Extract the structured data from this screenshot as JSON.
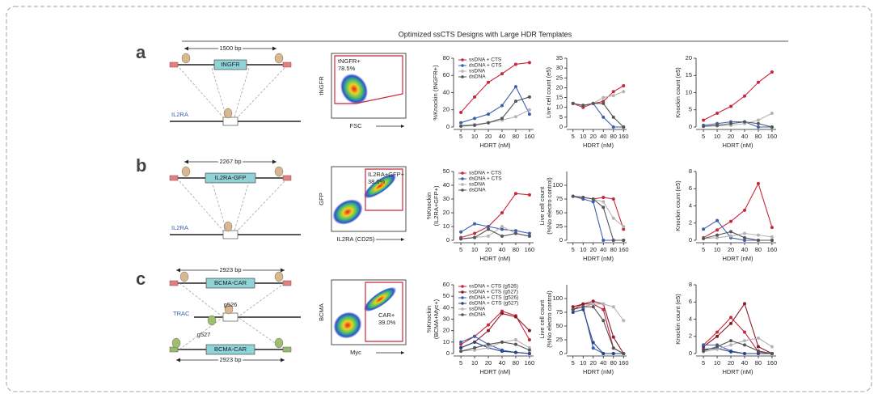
{
  "title": "Optimized ssCTS Designs with Large HDR Templates",
  "panels": [
    {
      "label": "a",
      "diagram": {
        "length": "1500 bp",
        "insert": "tNGFR",
        "locus": "IL2RA"
      },
      "flow": {
        "ylabel": "tNGFR",
        "xlabel": "FSC",
        "gate": "tNGFR+",
        "percent": "78.5%"
      },
      "charts": [
        {
          "type": "line",
          "ylabel": [
            "%Knockin (tNGFR+)"
          ],
          "xlabel": "HDRT (nM)",
          "categories": [
            "5",
            "10",
            "20",
            "40",
            "80",
            "160"
          ],
          "ylim": [
            0,
            80
          ],
          "yticks": [
            0,
            20,
            40,
            60,
            80
          ],
          "legend": "top-left",
          "series": [
            {
              "name": "ssDNA + CTS",
              "color": "#c8283c",
              "values": [
                17,
                35,
                52,
                62,
                73,
                75
              ]
            },
            {
              "name": "dsDNA + CTS",
              "color": "#3b5fb0",
              "values": [
                5,
                10,
                15,
                25,
                47,
                15
              ]
            },
            {
              "name": "ssDNA",
              "color": "#b4b4b4",
              "values": [
                2,
                3,
                5,
                8,
                12,
                20
              ]
            },
            {
              "name": "dsDNA",
              "color": "#555555",
              "values": [
                1,
                2,
                5,
                10,
                30,
                35
              ]
            }
          ]
        },
        {
          "type": "line",
          "ylabel": [
            "Live cell count (e5)"
          ],
          "xlabel": "HDRT (nM)",
          "categories": [
            "5",
            "10",
            "20",
            "40",
            "80",
            "160"
          ],
          "ylim": [
            0,
            35
          ],
          "yticks": [
            0,
            5,
            10,
            15,
            20,
            25,
            30,
            35
          ],
          "series": [
            {
              "color": "#c8283c",
              "values": [
                12,
                10,
                12,
                13,
                18,
                21
              ]
            },
            {
              "color": "#3b5fb0",
              "values": [
                12,
                11,
                12,
                5,
                0,
                0
              ]
            },
            {
              "color": "#b4b4b4",
              "values": [
                12,
                11,
                12,
                15,
                16,
                18
              ]
            },
            {
              "color": "#555555",
              "values": [
                12,
                11,
                12,
                12,
                5,
                0
              ]
            }
          ]
        },
        {
          "type": "line",
          "ylabel": [
            "Knockin count (e5)"
          ],
          "xlabel": "HDRT (nM)",
          "categories": [
            "5",
            "10",
            "20",
            "40",
            "80",
            "160"
          ],
          "ylim": [
            0,
            20
          ],
          "yticks": [
            0,
            5,
            10,
            15,
            20
          ],
          "series": [
            {
              "color": "#c8283c",
              "values": [
                2,
                4,
                6,
                9,
                13,
                16
              ]
            },
            {
              "color": "#3b5fb0",
              "values": [
                0.5,
                1,
                1.5,
                1.5,
                0,
                0
              ]
            },
            {
              "color": "#b4b4b4",
              "values": [
                0.2,
                0.3,
                0.5,
                1,
                2,
                4
              ]
            },
            {
              "color": "#555555",
              "values": [
                0.2,
                0.5,
                1,
                1.5,
                1,
                0
              ]
            }
          ]
        }
      ]
    },
    {
      "label": "b",
      "diagram": {
        "length": "2267 bp",
        "insert": "IL2RA-GFP",
        "locus": "IL2RA"
      },
      "flow": {
        "ylabel": "GFP",
        "xlabel": "IL2RA (CD25)",
        "gate": "IL2RA+GFP+",
        "percent": "38.0%"
      },
      "charts": [
        {
          "type": "line",
          "ylabel": [
            "%Knockin",
            "(IL2RA+GFP+)"
          ],
          "xlabel": "HDRT (nM)",
          "categories": [
            "5",
            "10",
            "20",
            "40",
            "80",
            "160"
          ],
          "ylim": [
            0,
            50
          ],
          "yticks": [
            0,
            10,
            20,
            30,
            40,
            50
          ],
          "legend": "top-left",
          "series": [
            {
              "name": "ssDNA + CTS",
              "color": "#c8283c",
              "values": [
                2,
                5,
                10,
                20,
                34,
                33
              ]
            },
            {
              "name": "dsDNA + CTS",
              "color": "#3b5fb0",
              "values": [
                6,
                12,
                10,
                8,
                7,
                5
              ]
            },
            {
              "name": "ssDNA",
              "color": "#b4b4b4",
              "values": [
                1,
                2,
                3,
                10,
                5,
                3
              ]
            },
            {
              "name": "dsDNA",
              "color": "#555555",
              "values": [
                1,
                2,
                8,
                3,
                5,
                3
              ]
            }
          ]
        },
        {
          "type": "line",
          "ylabel": [
            "Live cell count",
            "(%No electro control)"
          ],
          "xlabel": "HDRT (nM)",
          "categories": [
            "5",
            "10",
            "20",
            "40",
            "80",
            "160"
          ],
          "ylim": [
            0,
            125
          ],
          "yticks": [
            0,
            25,
            50,
            75,
            100
          ],
          "series": [
            {
              "color": "#c8283c",
              "values": [
                80,
                78,
                75,
                78,
                75,
                20
              ]
            },
            {
              "color": "#3b5fb0",
              "values": [
                80,
                75,
                70,
                0,
                0,
                0
              ]
            },
            {
              "color": "#b4b4b4",
              "values": [
                80,
                78,
                75,
                70,
                40,
                25
              ]
            },
            {
              "color": "#555555",
              "values": [
                80,
                78,
                75,
                60,
                0,
                0
              ]
            }
          ]
        },
        {
          "type": "line",
          "ylabel": [
            "Knockin count (e5)"
          ],
          "xlabel": "HDRT (nM)",
          "categories": [
            "5",
            "10",
            "20",
            "40",
            "80",
            "160"
          ],
          "ylim": [
            0,
            8
          ],
          "yticks": [
            0,
            2,
            4,
            6,
            8
          ],
          "series": [
            {
              "color": "#c8283c",
              "values": [
                0.3,
                1.2,
                2.2,
                3.5,
                6.6,
                1.5
              ]
            },
            {
              "color": "#3b5fb0",
              "values": [
                1.3,
                2.3,
                0.3,
                0,
                0,
                0
              ]
            },
            {
              "color": "#b4b4b4",
              "values": [
                0.2,
                0.3,
                0.5,
                0.8,
                0.6,
                0.4
              ]
            },
            {
              "color": "#555555",
              "values": [
                0.2,
                0.6,
                1,
                0.3,
                0,
                0
              ]
            }
          ]
        }
      ]
    },
    {
      "label": "c",
      "diagram": {
        "length": "2923 bp",
        "insert": "BCMA-CAR",
        "locus": "TRAC",
        "guide1": "g526",
        "guide2": "g527",
        "insert2": "BCMA-CAR",
        "length2": "2923 bp"
      },
      "flow": {
        "ylabel": "BCMA",
        "xlabel": "Myc",
        "gate": "CAR+",
        "percent": "39.0%"
      },
      "charts": [
        {
          "type": "line",
          "ylabel": [
            "%Knockin",
            "(BCMA+Myc+)"
          ],
          "xlabel": "HDRT (nM)",
          "categories": [
            "5",
            "10",
            "20",
            "40",
            "80",
            "160"
          ],
          "ylim": [
            0,
            60
          ],
          "yticks": [
            0,
            10,
            20,
            30,
            40,
            50,
            60
          ],
          "legend": "top-left",
          "series": [
            {
              "name": "ssDNA + CTS (g526)",
              "color": "#c8283c",
              "values": [
                8,
                15,
                25,
                37,
                33,
                12
              ]
            },
            {
              "name": "ssDNA + CTS (g527)",
              "color": "#8b1a2a",
              "values": [
                5,
                10,
                20,
                35,
                32,
                20
              ]
            },
            {
              "name": "dsDNA + CTS (g526)",
              "color": "#3b5fb0",
              "values": [
                10,
                15,
                8,
                3,
                1,
                0
              ]
            },
            {
              "name": "dsDNA + CTS (g527)",
              "color": "#2a4585",
              "values": [
                5,
                10,
                5,
                2,
                1,
                0
              ]
            },
            {
              "name": "ssDNA",
              "color": "#b4b4b4",
              "values": [
                2,
                3,
                5,
                10,
                12,
                5
              ]
            },
            {
              "name": "dsDNA",
              "color": "#555555",
              "values": [
                2,
                5,
                8,
                10,
                8,
                3
              ]
            }
          ]
        },
        {
          "type": "line",
          "ylabel": [
            "Live cell count",
            "(%No electro control)"
          ],
          "xlabel": "HDRT (nM)",
          "categories": [
            "5",
            "10",
            "20",
            "40",
            "80",
            "160"
          ],
          "ylim": [
            0,
            125
          ],
          "yticks": [
            0,
            25,
            50,
            75,
            100
          ],
          "series": [
            {
              "color": "#c8283c",
              "values": [
                80,
                90,
                90,
                80,
                10,
                0
              ]
            },
            {
              "color": "#8b1a2a",
              "values": [
                85,
                90,
                95,
                90,
                30,
                0
              ]
            },
            {
              "color": "#3b5fb0",
              "values": [
                80,
                85,
                10,
                0,
                0,
                0
              ]
            },
            {
              "color": "#2a4585",
              "values": [
                75,
                80,
                20,
                0,
                0,
                0
              ]
            },
            {
              "color": "#b4b4b4",
              "values": [
                80,
                85,
                90,
                90,
                85,
                60
              ]
            },
            {
              "color": "#555555",
              "values": [
                80,
                85,
                85,
                60,
                10,
                0
              ]
            }
          ]
        },
        {
          "type": "line",
          "ylabel": [
            "Knockin count (e5)"
          ],
          "xlabel": "HDRT (nM)",
          "categories": [
            "5",
            "10",
            "20",
            "40",
            "80",
            "160"
          ],
          "ylim": [
            0,
            8
          ],
          "yticks": [
            0,
            2,
            4,
            6,
            8
          ],
          "series": [
            {
              "color": "#c8283c",
              "values": [
                1,
                2.5,
                4.2,
                2.5,
                0.2,
                0
              ]
            },
            {
              "color": "#8b1a2a",
              "values": [
                0.8,
                2,
                3.5,
                5.8,
                0.8,
                0
              ]
            },
            {
              "color": "#3b5fb0",
              "values": [
                1,
                1,
                0.3,
                0,
                0,
                0
              ]
            },
            {
              "color": "#2a4585",
              "values": [
                0.5,
                0.6,
                0.2,
                0,
                0,
                0
              ]
            },
            {
              "color": "#b4b4b4",
              "values": [
                0.2,
                0.5,
                1,
                1.5,
                1.8,
                0.8
              ]
            },
            {
              "color": "#555555",
              "values": [
                0.3,
                0.8,
                1.5,
                1,
                0.3,
                0
              ]
            }
          ]
        }
      ]
    }
  ]
}
